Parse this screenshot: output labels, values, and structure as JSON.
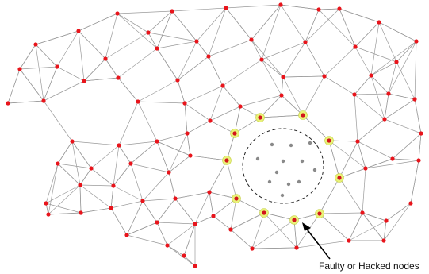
{
  "annotation": {
    "label": "Faulty or Hacked nodes"
  },
  "colors": {
    "normal_node": "#e8141b",
    "boundary_halo": "#e9f27a",
    "faulty_node": "#8a8a8a",
    "edge": "#9a9a9a"
  }
}
